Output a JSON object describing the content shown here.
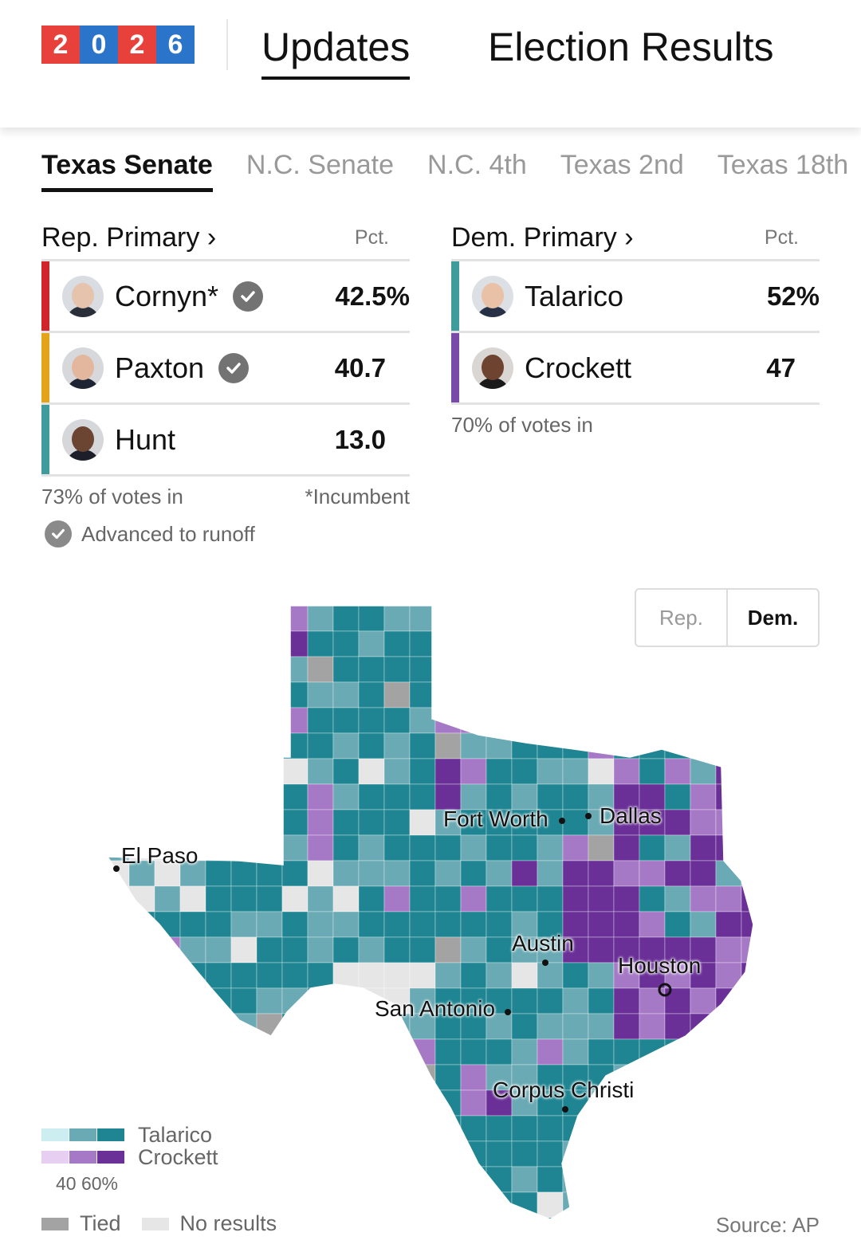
{
  "header": {
    "year_digits": [
      "2",
      "0",
      "2",
      "6"
    ],
    "nav": {
      "updates": "Updates",
      "results": "Election Results"
    }
  },
  "race_tabs": [
    "Texas Senate",
    "N.C. Senate",
    "N.C. 4th",
    "Texas 2nd",
    "Texas 18th"
  ],
  "rep_primary": {
    "title": "Rep. Primary ›",
    "pct_header": "Pct.",
    "candidates": [
      {
        "name": "Cornyn*",
        "pct": "42.5%",
        "advanced": true,
        "color": "#d1242b"
      },
      {
        "name": "Paxton",
        "pct": "40.7",
        "advanced": true,
        "color": "#e3a41a"
      },
      {
        "name": "Hunt",
        "pct": "13.0",
        "advanced": false,
        "color": "#3e9c9c"
      }
    ],
    "votes_in": "73% of votes in",
    "incumbent_note": "*Incumbent",
    "runoff_note": "Advanced to runoff"
  },
  "dem_primary": {
    "title": "Dem. Primary ›",
    "pct_header": "Pct.",
    "candidates": [
      {
        "name": "Talarico",
        "pct": "52%",
        "color": "#3e9c9c"
      },
      {
        "name": "Crockett",
        "pct": "47",
        "color": "#7a4aa8"
      }
    ],
    "votes_in": "70% of votes in"
  },
  "map": {
    "toggle": {
      "rep": "Rep.",
      "dem": "Dem."
    },
    "cities": {
      "el_paso": "El Paso",
      "fort_worth": "Fort Worth",
      "dallas": "Dallas",
      "austin": "Austin",
      "houston": "Houston",
      "san_antonio": "San Antonio",
      "corpus_christi": "Corpus Christi"
    },
    "colors": {
      "talarico": [
        "#cdeef0",
        "#6aaab4",
        "#1f8592"
      ],
      "crockett": [
        "#e6cff1",
        "#a679c6",
        "#6a3098"
      ],
      "tied": "#a3a3a3",
      "no_results": "#e6e6e6"
    }
  },
  "legend": {
    "talarico": "Talarico",
    "crockett": "Crockett",
    "scale": "40 60%",
    "tied": "Tied",
    "no_results": "No results",
    "source": "Source: AP"
  }
}
